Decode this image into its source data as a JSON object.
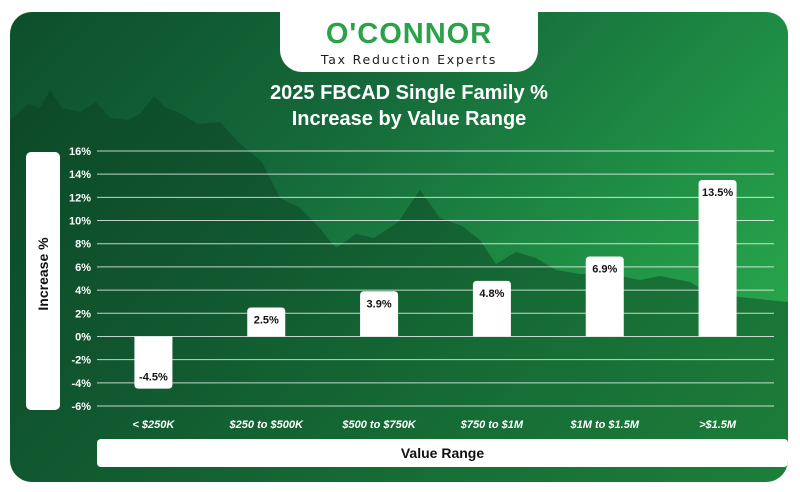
{
  "logo": {
    "name": "O'CONNOR",
    "tagline": "Tax Reduction Experts"
  },
  "colors": {
    "background_dark": "#0d4f2b",
    "background_light": "#2eb34f",
    "bars": "#ffffff",
    "brand_green": "#2aa24a",
    "label_text": "#111111"
  },
  "chart_data": {
    "type": "bar",
    "title": "2025 FBCAD Single Family %\nIncrease by Value Range",
    "title_lines": [
      "2025 FBCAD Single Family %",
      "Increase by Value Range"
    ],
    "xlabel": "Value Range",
    "ylabel": "Increase %",
    "categories": [
      "< $250K",
      "$250 to $500K",
      "$500 to $750K",
      "$750 to $1M",
      "$1M to $1.5M",
      ">$1.5M"
    ],
    "values": [
      -4.5,
      2.5,
      3.9,
      4.8,
      6.9,
      13.5
    ],
    "data_labels": [
      "-4.5%",
      "2.5%",
      "3.9%",
      "4.8%",
      "6.9%",
      "13.5%"
    ],
    "ylim": [
      -6,
      16
    ],
    "yticks": [
      16,
      14,
      12,
      10,
      8,
      6,
      4,
      2,
      0,
      -2,
      -4,
      -6
    ],
    "ytick_labels": [
      "16%",
      "14%",
      "12%",
      "10%",
      "8%",
      "6%",
      "4%",
      "2%",
      "0%",
      "-2%",
      "-4%",
      "-6%"
    ],
    "grid": true,
    "legend": "none"
  }
}
